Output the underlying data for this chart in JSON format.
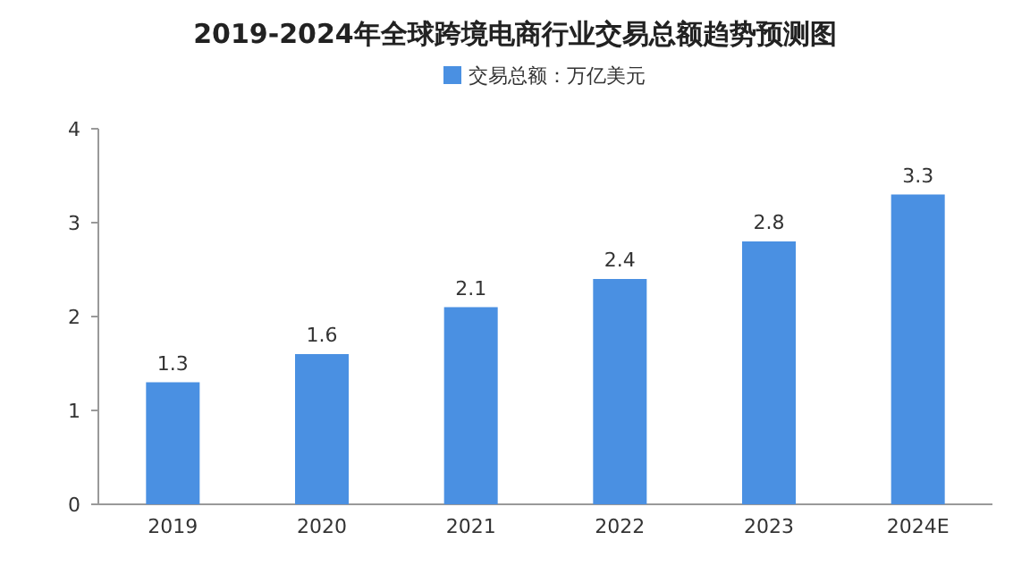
{
  "chart_data": {
    "type": "bar",
    "title": "2019-2024年全球跨境电商行业交易总额趋势预测图",
    "categories": [
      "2019",
      "2020",
      "2021",
      "2022",
      "2023",
      "2024E"
    ],
    "series": [
      {
        "name": "交易总额：万亿美元",
        "color": "#4a90e2",
        "values": [
          1.3,
          1.6,
          2.1,
          2.4,
          2.8,
          3.3
        ]
      }
    ],
    "ylim": [
      0,
      4
    ],
    "yticks": [
      0,
      1,
      2,
      3,
      4
    ],
    "data_labels": true,
    "legend": "top"
  }
}
